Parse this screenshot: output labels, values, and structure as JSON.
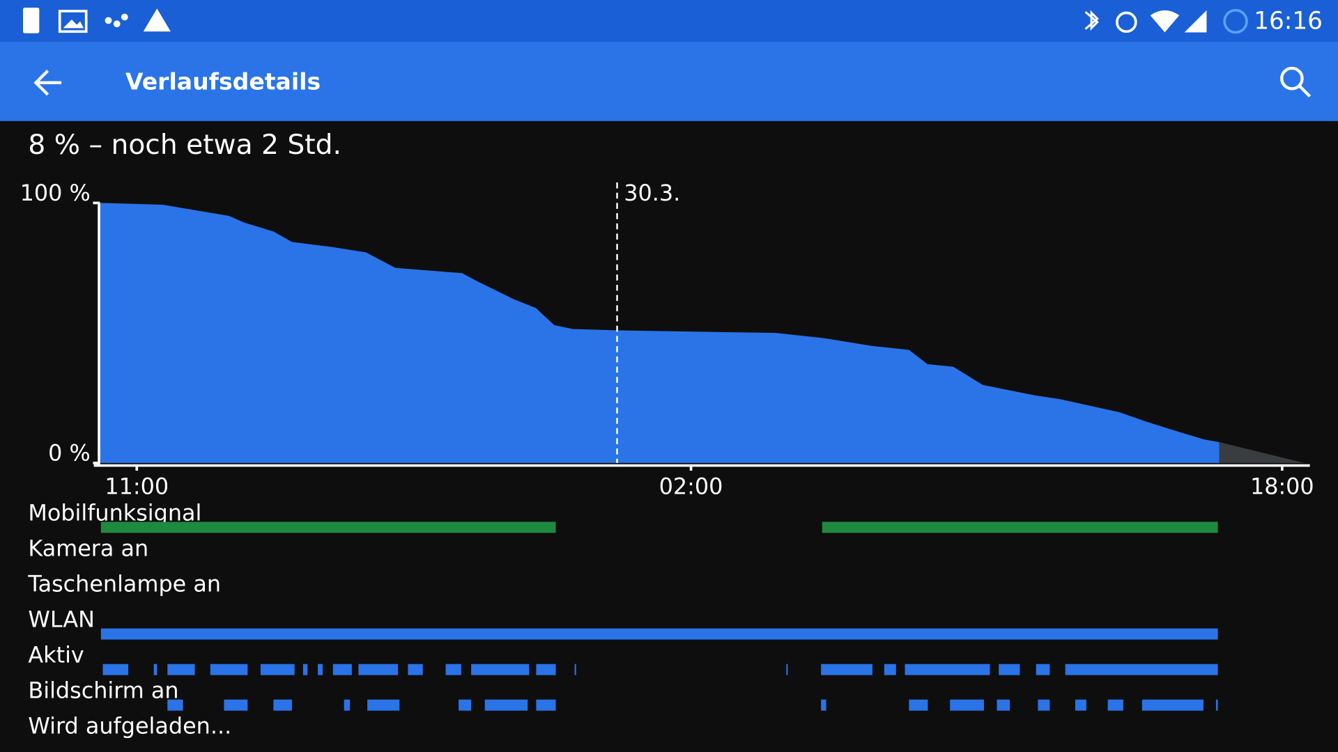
{
  "status_bar": {
    "time": "16:16"
  },
  "app_bar": {
    "title": "Verlaufsdetails"
  },
  "summary": "8 % – noch etwa 2 Std.",
  "chart_data": {
    "type": "area",
    "ylim": [
      0,
      100
    ],
    "yticks": [
      {
        "value": 0,
        "label": "0 %"
      },
      {
        "value": 100,
        "label": "100 %"
      }
    ],
    "xlim": [
      10,
      42.75
    ],
    "xticks": [
      {
        "value": 11,
        "label": "11:00"
      },
      {
        "value": 26,
        "label": "02:00"
      },
      {
        "value": 42,
        "label": "18:00"
      }
    ],
    "marker": {
      "x": 24,
      "label": "30.3."
    },
    "series": [
      {
        "color": "#2a74e8",
        "x": [
          10.0,
          11.7,
          13.5,
          13.9,
          14.7,
          15.2,
          16.3,
          17.2,
          18.0,
          19.8,
          20.2,
          21.2,
          21.8,
          22.3,
          22.8,
          24,
          28.3,
          29.6,
          30.9,
          31.9,
          32.4,
          33.1,
          33.9,
          35.3,
          36.0,
          37.6,
          38.3,
          39.2,
          39.9,
          40.3
        ],
        "values": [
          100,
          99.3,
          95,
          92.5,
          89,
          85,
          83,
          81,
          75,
          73,
          70,
          63,
          59.6,
          53,
          51.5,
          51,
          50,
          48,
          45,
          43.5,
          38,
          37,
          30,
          26,
          24.5,
          19.5,
          16,
          12,
          9,
          8
        ]
      },
      {
        "color": "#3a3d40",
        "x": [
          40.3,
          42.6
        ],
        "values": [
          8,
          0
        ]
      }
    ],
    "tracks": [
      {
        "label": "Mobilfunksignal",
        "color": "#1e8a3e",
        "segments": [
          [
            10.03,
            22.34
          ],
          [
            29.55,
            40.26
          ]
        ]
      },
      {
        "label": "Kamera an",
        "color": "#2a74e8",
        "segments": []
      },
      {
        "label": "Taschenlampe an",
        "color": "#2a74e8",
        "segments": []
      },
      {
        "label": "WLAN",
        "color": "#2a74e8",
        "segments": [
          [
            10.03,
            40.26
          ]
        ]
      },
      {
        "label": "Aktiv",
        "color": "#2a74e8",
        "segments": [
          [
            10.08,
            10.77
          ],
          [
            11.46,
            11.55
          ],
          [
            11.83,
            12.57
          ],
          [
            12.99,
            14.0
          ],
          [
            14.35,
            15.27
          ],
          [
            15.5,
            15.62
          ],
          [
            15.9,
            16.03
          ],
          [
            16.31,
            16.82
          ],
          [
            17.0,
            18.07
          ],
          [
            18.34,
            18.74
          ],
          [
            19.36,
            19.78
          ],
          [
            20.05,
            21.62
          ],
          [
            21.81,
            22.34
          ],
          [
            22.85,
            22.89
          ],
          [
            28.58,
            28.62
          ],
          [
            29.52,
            30.91
          ],
          [
            31.23,
            31.55
          ],
          [
            31.79,
            34.09
          ],
          [
            34.33,
            34.9
          ],
          [
            35.34,
            35.71
          ],
          [
            36.13,
            40.26
          ]
        ]
      },
      {
        "label": "Bildschirm an",
        "color": "#2a74e8",
        "segments": [
          [
            11.83,
            12.25
          ],
          [
            13.36,
            14.0
          ],
          [
            14.7,
            15.2
          ],
          [
            16.61,
            16.77
          ],
          [
            17.24,
            18.11
          ],
          [
            19.71,
            20.05
          ],
          [
            20.42,
            21.58
          ],
          [
            21.81,
            22.34
          ],
          [
            29.52,
            29.66
          ],
          [
            31.9,
            32.41
          ],
          [
            33.01,
            33.93
          ],
          [
            34.28,
            34.63
          ],
          [
            35.39,
            35.71
          ],
          [
            36.4,
            36.7
          ],
          [
            37.28,
            37.7
          ],
          [
            38.21,
            39.87
          ],
          [
            40.21,
            40.26
          ]
        ]
      },
      {
        "label": "Wird aufgeladen...",
        "color": "#2a74e8",
        "segments": []
      }
    ]
  }
}
